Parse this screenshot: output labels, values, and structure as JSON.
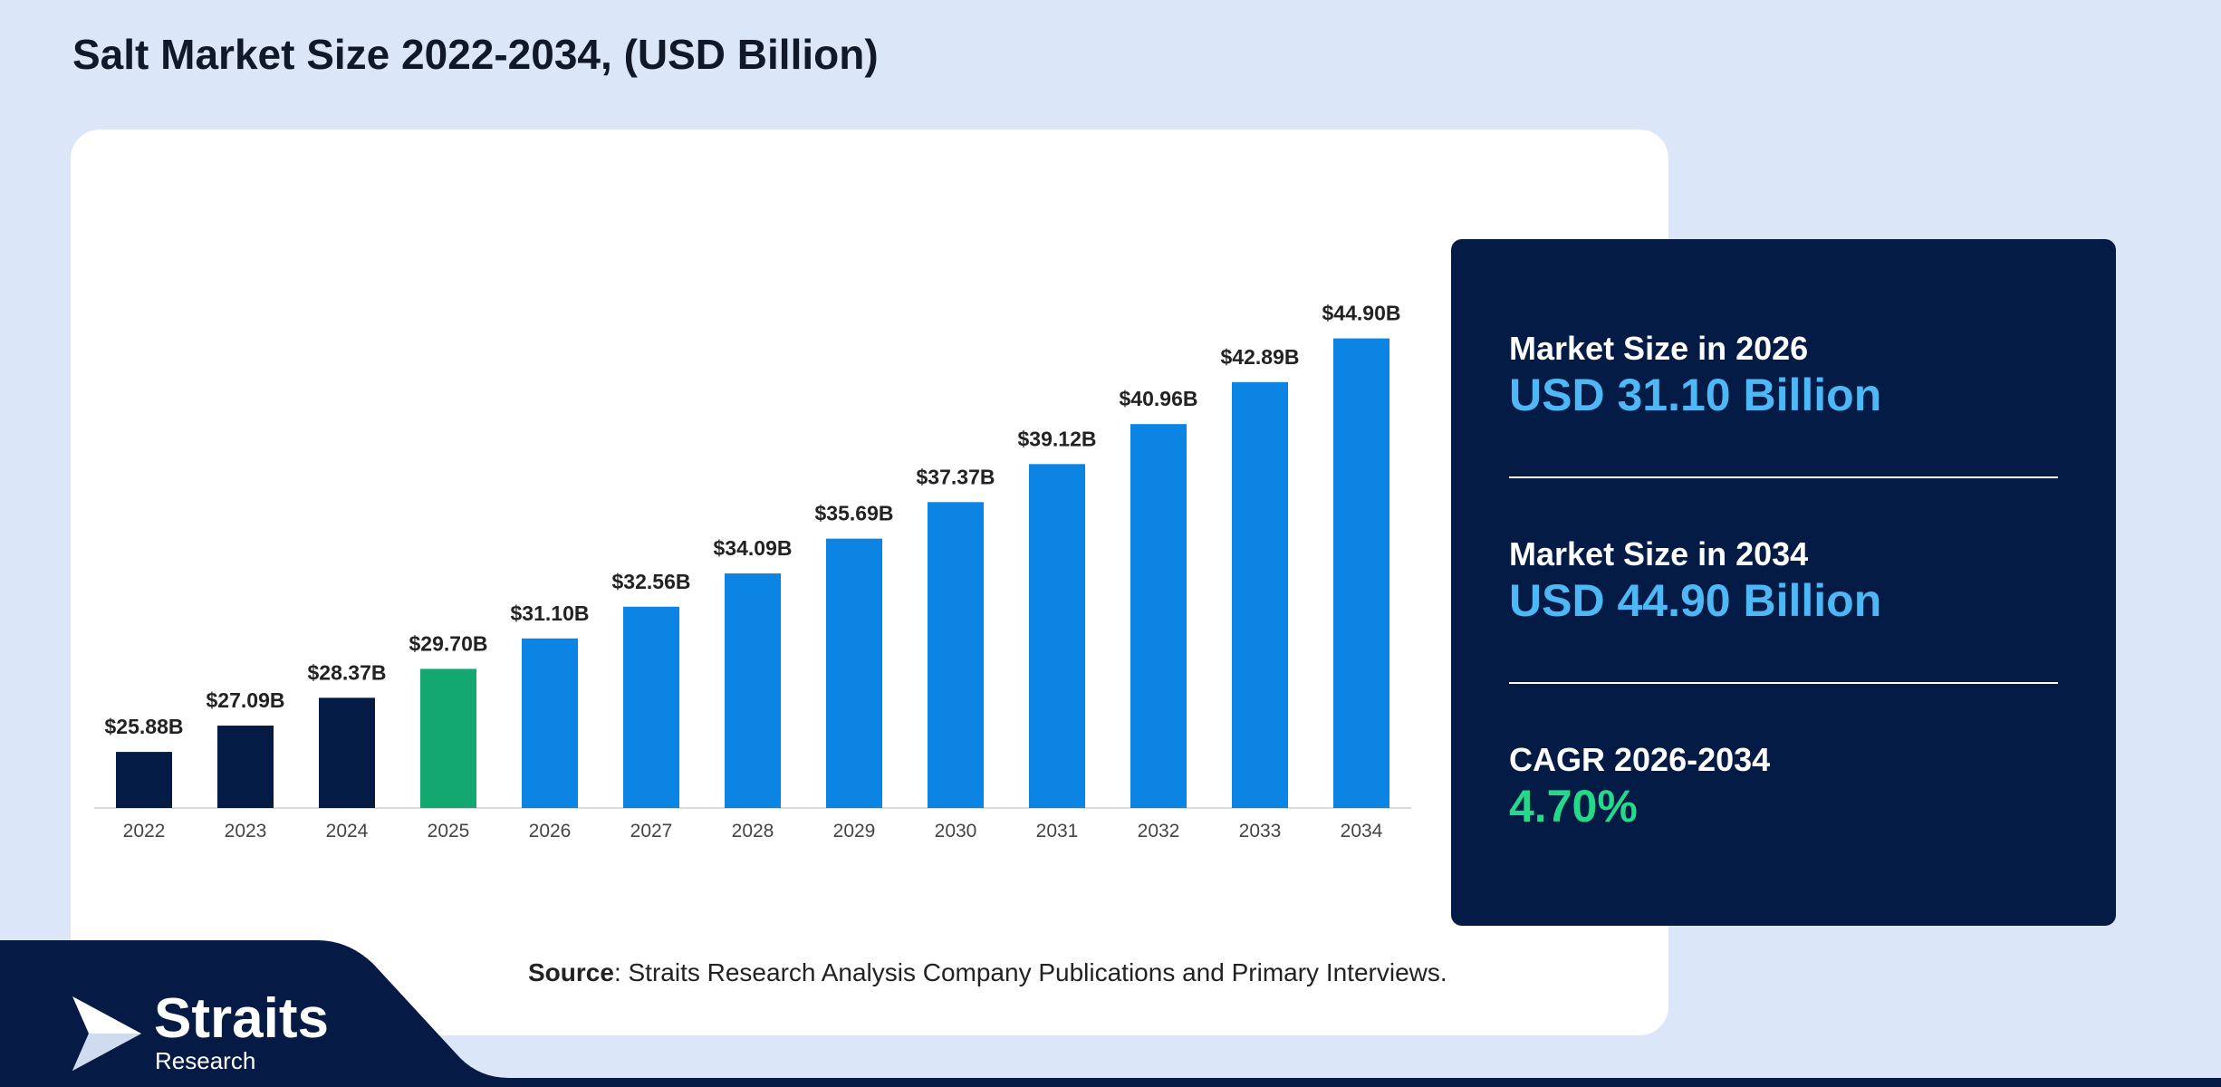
{
  "title": "Salt Market Size 2022-2034, (USD Billion)",
  "colors": {
    "background": "#dbe7f8",
    "historical": "#031b45",
    "base_year": "#12a86f",
    "forecast": "#0b84e4",
    "stats_panel": "#031b45",
    "stat_value_blue": "#4db8f5",
    "stat_value_green": "#25d98b"
  },
  "chart_data": {
    "type": "bar",
    "title": "Salt Market Size 2022-2034, (USD Billion)",
    "categories": [
      "2022",
      "2023",
      "2024",
      "2025",
      "2026",
      "2027",
      "2028",
      "2029",
      "2030",
      "2031",
      "2032",
      "2033",
      "2034"
    ],
    "values": [
      25.88,
      27.09,
      28.37,
      29.7,
      31.1,
      32.56,
      34.09,
      35.69,
      37.37,
      39.12,
      40.96,
      42.89,
      44.9
    ],
    "data_labels": [
      "$25.88B",
      "$27.09B",
      "$28.37B",
      "$29.70B",
      "$31.10B",
      "$32.56B",
      "$34.09B",
      "$35.69B",
      "$37.37B",
      "$39.12B",
      "$40.96B",
      "$42.89B",
      "$44.90B"
    ],
    "bar_colors": [
      "#031b45",
      "#031b45",
      "#031b45",
      "#12a86f",
      "#0b84e4",
      "#0b84e4",
      "#0b84e4",
      "#0b84e4",
      "#0b84e4",
      "#0b84e4",
      "#0b84e4",
      "#0b84e4",
      "#0b84e4"
    ],
    "xlabel": "",
    "ylabel": "",
    "grid": false,
    "legend": false
  },
  "stats": {
    "market_size_2026": {
      "label": "Market Size in 2026",
      "value": "USD 31.10 Billion"
    },
    "market_size_2034": {
      "label": "Market Size in 2034",
      "value": "USD 44.90 Billion"
    },
    "cagr": {
      "label": "CAGR 2026-2034",
      "value": "4.70%"
    }
  },
  "source": {
    "label": "Source",
    "text": ": Straits Research Analysis Company Publications and Primary Interviews."
  },
  "logo": {
    "name": "Straits",
    "sub": "Research"
  }
}
